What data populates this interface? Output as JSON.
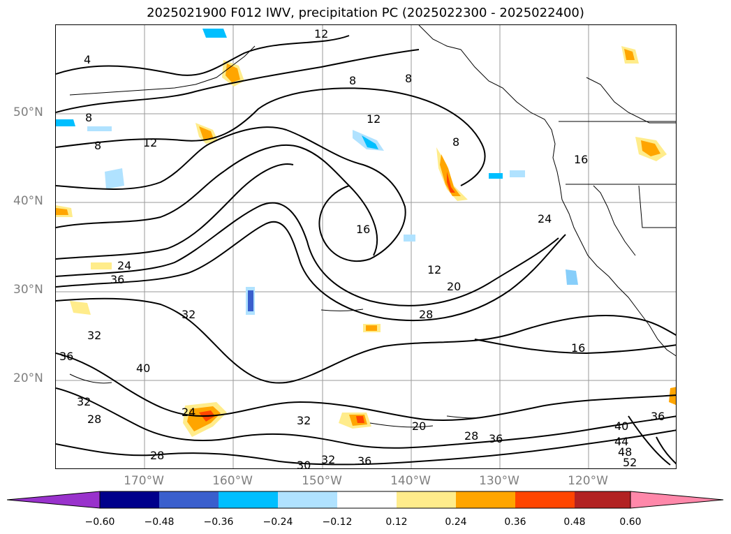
{
  "title": "2025021900 F012 IWV, precipitation PC (2025022300 - 2025022400)",
  "latitude_labels": [
    "50°N",
    "40°N",
    "30°N",
    "20°N"
  ],
  "longitude_labels": [
    "170°W",
    "160°W",
    "150°W",
    "140°W",
    "130°W",
    "120°W"
  ],
  "map_extent": {
    "lon_min": -180,
    "lon_max": -110,
    "lat_min": 10,
    "lat_max": 60
  },
  "iwv_contour_labels": [
    "4",
    "8",
    "8",
    "8",
    "8",
    "8",
    "12",
    "12",
    "12",
    "12",
    "16",
    "16",
    "16",
    "20",
    "20",
    "24",
    "24",
    "24",
    "28",
    "28",
    "28",
    "28",
    "30",
    "32",
    "32",
    "32",
    "32",
    "32",
    "36",
    "36",
    "36",
    "36",
    "36",
    "40",
    "40",
    "44",
    "48",
    "52"
  ],
  "colorbar": {
    "ticks": [
      "−0.60",
      "−0.48",
      "−0.36",
      "−0.24",
      "−0.12",
      "0.12",
      "0.24",
      "0.36",
      "0.48",
      "0.60"
    ],
    "colors": [
      "#9932cc",
      "#00008b",
      "#3a5fcd",
      "#00bfff",
      "#b0e2ff",
      "#ffffff",
      "#ffec8b",
      "#ffa500",
      "#ff4500",
      "#b22222",
      "#ff88aa"
    ]
  }
}
